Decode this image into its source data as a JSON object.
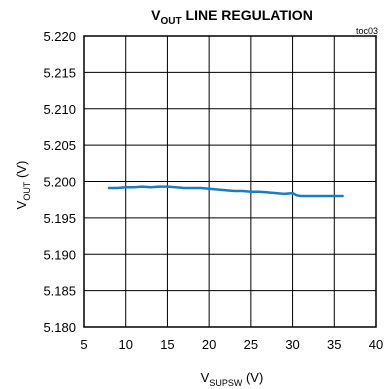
{
  "chart_data": {
    "type": "line",
    "title": {
      "main": "V",
      "sub": "OUT",
      "rest": " LINE REGULATION"
    },
    "tag": "toc03",
    "xlabel": {
      "main": "V",
      "sub": "SUPSW",
      "rest": " (V)"
    },
    "ylabel": {
      "main": "V",
      "sub": "OUT",
      "rest": " (V)"
    },
    "xlim": [
      5,
      40
    ],
    "ylim": [
      5.18,
      5.22
    ],
    "xticks": [
      5,
      10,
      15,
      20,
      25,
      30,
      35,
      40
    ],
    "xtick_labels": [
      "5",
      "10",
      "15",
      "20",
      "25",
      "30",
      "35",
      "40"
    ],
    "yticks": [
      5.18,
      5.185,
      5.19,
      5.195,
      5.2,
      5.205,
      5.21,
      5.215,
      5.22
    ],
    "ytick_labels": [
      "5.180",
      "5.185",
      "5.190",
      "5.195",
      "5.200",
      "5.205",
      "5.210",
      "5.215",
      "5.220"
    ],
    "grid": true,
    "series": [
      {
        "color": "#1a7dc4",
        "x": [
          8,
          9,
          10,
          11,
          12,
          13,
          14,
          15,
          16,
          17,
          18,
          19,
          20,
          21,
          22,
          23,
          24,
          25,
          26,
          27,
          28,
          29,
          30,
          30.5,
          31,
          32,
          33,
          34,
          35,
          36
        ],
        "y": [
          5.1991,
          5.1991,
          5.1992,
          5.1992,
          5.1993,
          5.1992,
          5.1993,
          5.1993,
          5.1992,
          5.1991,
          5.1991,
          5.1991,
          5.199,
          5.1989,
          5.1988,
          5.1987,
          5.1987,
          5.1986,
          5.1986,
          5.1985,
          5.1984,
          5.1983,
          5.1984,
          5.1981,
          5.198,
          5.198,
          5.198,
          5.198,
          5.198,
          5.198
        ]
      }
    ]
  }
}
